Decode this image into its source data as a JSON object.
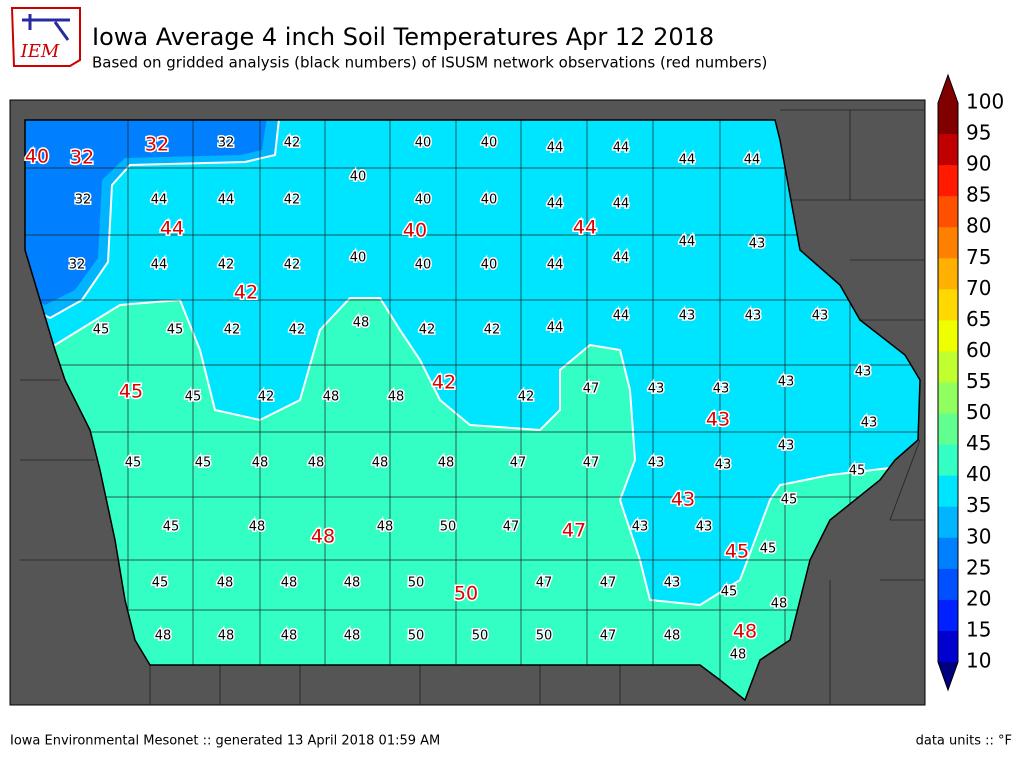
{
  "header": {
    "logo": "IEM",
    "title": "Iowa Average 4 inch Soil Temperatures Apr 12 2018",
    "subtitle": "Based on gridded analysis (black numbers) of ISUSM network observations (red numbers)"
  },
  "map": {
    "gridded_values": [
      32,
      42,
      40,
      40,
      44,
      44,
      44,
      44,
      32,
      44,
      44,
      42,
      40,
      40,
      40,
      44,
      44,
      44,
      43,
      32,
      44,
      42,
      42,
      40,
      40,
      40,
      44,
      44,
      45,
      45,
      42,
      42,
      48,
      42,
      42,
      44,
      44,
      43,
      43,
      43,
      45,
      42,
      48,
      48,
      42,
      47,
      43,
      43,
      43,
      43,
      43,
      45,
      45,
      48,
      48,
      48,
      48,
      47,
      47,
      43,
      43,
      43,
      45,
      45,
      48,
      48,
      50,
      47,
      43,
      43,
      45,
      45,
      48,
      48,
      48,
      50,
      47,
      47,
      43,
      45,
      45,
      48,
      48,
      48,
      48,
      48,
      50,
      50,
      50,
      47,
      48,
      48
    ],
    "observed_values": [
      40,
      32,
      32,
      44,
      40,
      44,
      42,
      45,
      42,
      43,
      43,
      48,
      47,
      45,
      50,
      48
    ]
  },
  "colorbar": {
    "labels": [
      100,
      95,
      90,
      85,
      80,
      75,
      70,
      65,
      60,
      55,
      50,
      45,
      40,
      35,
      30,
      25,
      20,
      15,
      10
    ],
    "colors": [
      "#800000",
      "#c00000",
      "#ff1a00",
      "#ff5000",
      "#ff8000",
      "#ffb000",
      "#ffd800",
      "#f0ff00",
      "#c0ff30",
      "#90ff60",
      "#60ff90",
      "#33ffc4",
      "#00e5ff",
      "#00b4ff",
      "#0080ff",
      "#0050ff",
      "#0020ff",
      "#0000d0",
      "#000080"
    ]
  },
  "footer": {
    "left": "Iowa Environmental Mesonet :: generated 13 April 2018 01:59 AM",
    "right": "data units :: °F"
  }
}
